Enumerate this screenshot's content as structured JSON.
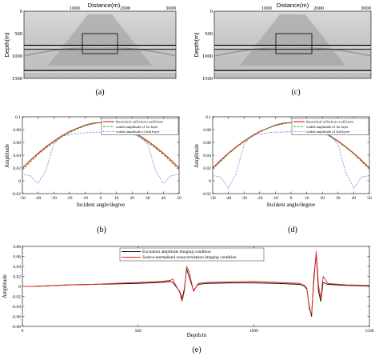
{
  "chart_data": [
    {
      "id": "a",
      "type": "heatmap",
      "caption": "(a)",
      "xlabel": "Distance(m)",
      "ylabel": "Depth(m)",
      "xticks": [
        "1000",
        "2000",
        "3000"
      ],
      "yticks": [
        "0",
        "500",
        "1000",
        "1500"
      ],
      "xlim": [
        0,
        3000
      ],
      "ylim": [
        0,
        1500
      ],
      "reflectors_depth_m": [
        720,
        800,
        1340
      ],
      "box": {
        "x": [
          1250,
          1850
        ],
        "depth": [
          500,
          900
        ]
      }
    },
    {
      "id": "c",
      "type": "heatmap",
      "caption": "(c)",
      "xlabel": "Distance(m)",
      "ylabel": "Depth(m)",
      "xticks": [
        "1000",
        "2000",
        "3000"
      ],
      "yticks": [
        "0",
        "500",
        "1000",
        "1500"
      ],
      "xlim": [
        0,
        3000
      ],
      "ylim": [
        0,
        1500
      ],
      "reflectors_depth_m": [
        720,
        800,
        1340
      ],
      "box": {
        "x": [
          1250,
          1850
        ],
        "depth": [
          500,
          900
        ]
      }
    },
    {
      "id": "b",
      "type": "line",
      "caption": "(b)",
      "xlabel": "Incident angle/degree",
      "ylabel": "Amplitude",
      "xlim": [
        -50,
        50
      ],
      "ylim": [
        -0.02,
        0.1
      ],
      "xticks": [
        "-50",
        "-40",
        "-30",
        "-20",
        "-10",
        "0",
        "10",
        "20",
        "30",
        "40",
        "50"
      ],
      "yticks": [
        "-0.02",
        "0",
        "0.02",
        "0.04",
        "0.06",
        "0.08",
        "0.1"
      ],
      "legend_position": "top-right",
      "x": [
        -50,
        -45,
        -40,
        -35,
        -30,
        -25,
        -20,
        -15,
        -10,
        -5,
        0,
        5,
        10,
        15,
        20,
        25,
        30,
        35,
        40,
        45,
        50
      ],
      "series": [
        {
          "name": "theoretical reflection coefficient",
          "color": "#e8261c",
          "values": [
            0.02,
            0.032,
            0.043,
            0.053,
            0.062,
            0.07,
            0.077,
            0.082,
            0.087,
            0.09,
            0.091,
            0.09,
            0.087,
            0.082,
            0.077,
            0.07,
            0.062,
            0.053,
            0.043,
            0.032,
            0.02
          ]
        },
        {
          "name": "scaled amplitude of 1st layer",
          "color": "#39a935",
          "values": [
            0.017,
            0.029,
            0.041,
            0.051,
            0.06,
            0.068,
            0.075,
            0.081,
            0.086,
            0.089,
            0.091,
            0.089,
            0.086,
            0.081,
            0.075,
            0.068,
            0.06,
            0.051,
            0.041,
            0.029,
            0.017
          ]
        },
        {
          "name": "scaled amplitude of 2nd layer",
          "color": "#3a66d8",
          "values": [
            0.01,
            0.008,
            -0.004,
            0.016,
            0.057,
            0.07,
            0.072,
            0.074,
            0.075,
            0.076,
            0.076,
            0.076,
            0.075,
            0.074,
            0.072,
            0.07,
            0.057,
            0.016,
            -0.004,
            0.008,
            0.01
          ]
        }
      ]
    },
    {
      "id": "d",
      "type": "line",
      "caption": "(d)",
      "xlabel": "Incident angle/degree",
      "ylabel": "Amplitude",
      "xlim": [
        -50,
        50
      ],
      "ylim": [
        -0.02,
        0.1
      ],
      "xticks": [
        "-50",
        "-40",
        "-30",
        "-20",
        "-10",
        "0",
        "10",
        "20",
        "30",
        "40",
        "50"
      ],
      "yticks": [
        "-0.02",
        "0",
        "0.02",
        "0.04",
        "0.06",
        "0.08",
        "0.1"
      ],
      "legend_position": "top-right",
      "x": [
        -50,
        -45,
        -40,
        -35,
        -30,
        -25,
        -20,
        -15,
        -10,
        -5,
        0,
        5,
        10,
        15,
        20,
        25,
        30,
        35,
        40,
        45,
        50
      ],
      "series": [
        {
          "name": "theoretical reflection coefficient",
          "color": "#e8261c",
          "values": [
            0.02,
            0.032,
            0.043,
            0.053,
            0.062,
            0.07,
            0.077,
            0.082,
            0.087,
            0.09,
            0.091,
            0.09,
            0.087,
            0.082,
            0.077,
            0.07,
            0.062,
            0.053,
            0.043,
            0.032,
            0.02
          ]
        },
        {
          "name": "scaled amplitude of 1st layer",
          "color": "#39a935",
          "values": [
            0.018,
            0.03,
            0.042,
            0.052,
            0.061,
            0.069,
            0.076,
            0.082,
            0.086,
            0.089,
            0.091,
            0.089,
            0.086,
            0.082,
            0.076,
            0.069,
            0.061,
            0.052,
            0.042,
            0.03,
            0.018
          ]
        },
        {
          "name": "scaled amplitude of 2nd layer",
          "color": "#3a66d8",
          "values": [
            0.008,
            0.006,
            -0.012,
            0.012,
            0.057,
            0.071,
            0.073,
            0.075,
            0.076,
            0.076,
            0.077,
            0.076,
            0.076,
            0.075,
            0.073,
            0.071,
            0.057,
            0.012,
            -0.012,
            0.006,
            0.008
          ]
        }
      ]
    },
    {
      "id": "e",
      "type": "line",
      "caption": "(e)",
      "xlabel": "Depth/m",
      "ylabel": "Amplitude",
      "xlim": [
        0,
        1500
      ],
      "ylim": [
        -0.08,
        0.08
      ],
      "xticks": [
        "0",
        "500",
        "1000",
        "1500"
      ],
      "yticks": [
        "-0.08",
        "-0.06",
        "-0.04",
        "-0.02",
        "0",
        "0.02",
        "0.04",
        "0.06",
        "0.08"
      ],
      "legend_position": "top-center",
      "x": [
        0,
        50,
        100,
        150,
        200,
        300,
        400,
        500,
        600,
        640,
        650,
        660,
        680,
        690,
        700,
        710,
        720,
        740,
        760,
        800,
        900,
        1000,
        1100,
        1200,
        1220,
        1230,
        1240,
        1250,
        1260,
        1270,
        1280,
        1290,
        1300,
        1320,
        1400,
        1500
      ],
      "series": [
        {
          "name": "Excitation amplitude imaging condition",
          "color": "#111111",
          "values": [
            0,
            0,
            0.001,
            0.002,
            0.003,
            0.004,
            0.005,
            0.006,
            0.008,
            0.01,
            0.008,
            0.002,
            -0.01,
            -0.025,
            -0.005,
            0.035,
            0.02,
            -0.008,
            0.004,
            0.006,
            0.007,
            0.007,
            0.006,
            0.004,
            0.0,
            -0.006,
            -0.04,
            -0.06,
            0.02,
            0.065,
            -0.01,
            -0.03,
            0.008,
            0.004,
            0.002,
            0.001
          ]
        },
        {
          "name": "Source-normalized crosscorrelation imaging condition",
          "color": "#e8261c",
          "values": [
            0,
            0,
            0.001,
            0.002,
            0.003,
            0.004,
            0.006,
            0.008,
            0.01,
            0.012,
            0.015,
            0.005,
            -0.012,
            -0.03,
            -0.01,
            0.04,
            0.03,
            -0.01,
            0.006,
            0.008,
            0.009,
            0.01,
            0.008,
            0.006,
            0.002,
            -0.004,
            -0.045,
            -0.055,
            0.01,
            0.07,
            0.002,
            -0.025,
            0.02,
            0.006,
            0.003,
            0.002
          ]
        }
      ]
    }
  ]
}
